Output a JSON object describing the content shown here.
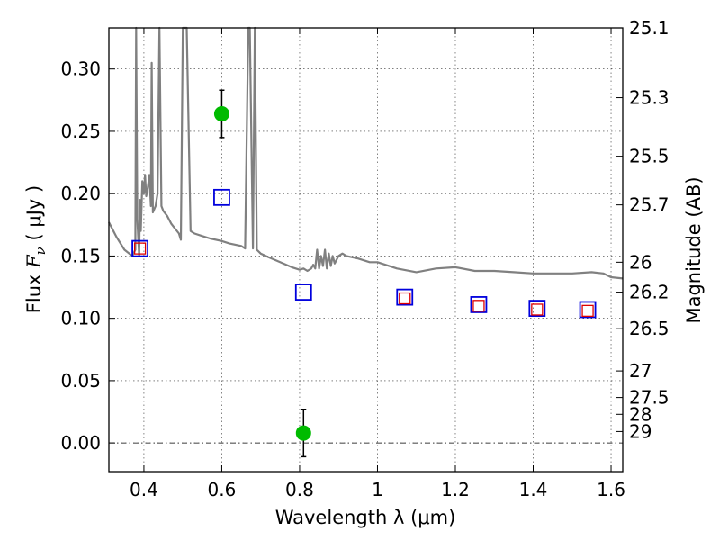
{
  "chart_data": {
    "type": "scatter",
    "title": "",
    "xlabel": "Wavelength  λ (μm)",
    "ylabel": "Flux  F_ν  ( μJy )",
    "ylabel_parts": {
      "prefix": "Flux ",
      "symbol": "F",
      "sub": "ν",
      "unit": " ( μJy )"
    },
    "y2label": "Magnitude (AB)",
    "xlim": [
      0.31,
      1.63
    ],
    "ylim": [
      -0.023,
      0.333
    ],
    "grid": true,
    "x_ticks": [
      0.4,
      0.6,
      0.8,
      1.0,
      1.2,
      1.4,
      1.6
    ],
    "x_tick_labels": [
      "0.4",
      "0.6",
      "0.8",
      "1",
      "1.2",
      "1.4",
      "1.6"
    ],
    "y_ticks": [
      0.0,
      0.05,
      0.1,
      0.15,
      0.2,
      0.25,
      0.3
    ],
    "y_tick_labels": [
      "0.00",
      "0.05",
      "0.10",
      "0.15",
      "0.20",
      "0.25",
      "0.30"
    ],
    "y2_ticks": [
      {
        "label": "25.1",
        "flux": 0.333
      },
      {
        "label": "25.3",
        "flux": 0.277
      },
      {
        "label": "25.5",
        "flux": 0.23
      },
      {
        "label": "25.7",
        "flux": 0.191
      },
      {
        "label": "26",
        "flux": 0.145
      },
      {
        "label": "26.2",
        "flux": 0.121
      },
      {
        "label": "26.5",
        "flux": 0.0917
      },
      {
        "label": "27",
        "flux": 0.0578
      },
      {
        "label": "27.5",
        "flux": 0.0365
      },
      {
        "label": "28",
        "flux": 0.023
      },
      {
        "label": "29",
        "flux": 0.0092
      }
    ],
    "series": [
      {
        "name": "observed photometry",
        "marker": "circle",
        "color": "#00bb00",
        "points": [
          {
            "x": 0.6,
            "y": 0.264,
            "err": 0.019
          },
          {
            "x": 0.81,
            "y": 0.008,
            "err": 0.019
          }
        ]
      },
      {
        "name": "model photometry (blue squares)",
        "marker": "square",
        "color": "#0000dd",
        "points": [
          {
            "x": 0.39,
            "y": 0.156
          },
          {
            "x": 0.6,
            "y": 0.197
          },
          {
            "x": 0.81,
            "y": 0.121
          },
          {
            "x": 1.07,
            "y": 0.117
          },
          {
            "x": 1.26,
            "y": 0.111
          },
          {
            "x": 1.41,
            "y": 0.108
          },
          {
            "x": 1.54,
            "y": 0.107
          }
        ]
      },
      {
        "name": "model photometry (red squares)",
        "marker": "square-small",
        "color": "#dd0000",
        "points": [
          {
            "x": 0.39,
            "y": 0.156
          },
          {
            "x": 1.07,
            "y": 0.116
          },
          {
            "x": 1.26,
            "y": 0.11
          },
          {
            "x": 1.41,
            "y": 0.107
          },
          {
            "x": 1.54,
            "y": 0.106
          }
        ]
      },
      {
        "name": "model SED spectrum",
        "type": "line",
        "color": "#808080",
        "x": [
          0.31,
          0.33,
          0.35,
          0.37,
          0.378,
          0.38,
          0.383,
          0.386,
          0.388,
          0.39,
          0.392,
          0.396,
          0.4,
          0.403,
          0.406,
          0.41,
          0.414,
          0.418,
          0.42,
          0.423,
          0.43,
          0.435,
          0.44,
          0.445,
          0.45,
          0.46,
          0.47,
          0.48,
          0.49,
          0.495,
          0.5,
          0.505,
          0.51,
          0.52,
          0.53,
          0.55,
          0.57,
          0.6,
          0.62,
          0.65,
          0.66,
          0.668,
          0.672,
          0.68,
          0.685,
          0.69,
          0.7,
          0.72,
          0.75,
          0.78,
          0.8,
          0.81,
          0.82,
          0.83,
          0.835,
          0.84,
          0.845,
          0.85,
          0.855,
          0.86,
          0.865,
          0.87,
          0.875,
          0.88,
          0.885,
          0.89,
          0.9,
          0.91,
          0.92,
          0.95,
          0.98,
          1.0,
          1.05,
          1.1,
          1.15,
          1.2,
          1.25,
          1.3,
          1.35,
          1.4,
          1.45,
          1.5,
          1.55,
          1.58,
          1.6,
          1.63
        ],
        "y": [
          0.177,
          0.165,
          0.155,
          0.15,
          0.155,
          0.333,
          0.18,
          0.16,
          0.15,
          0.195,
          0.17,
          0.21,
          0.2,
          0.215,
          0.198,
          0.205,
          0.215,
          0.19,
          0.305,
          0.185,
          0.19,
          0.2,
          0.333,
          0.19,
          0.186,
          0.182,
          0.176,
          0.172,
          0.168,
          0.163,
          0.333,
          0.333,
          0.333,
          0.17,
          0.168,
          0.166,
          0.164,
          0.162,
          0.16,
          0.158,
          0.156,
          0.333,
          0.333,
          0.156,
          0.333,
          0.155,
          0.152,
          0.149,
          0.145,
          0.141,
          0.139,
          0.14,
          0.138,
          0.14,
          0.143,
          0.14,
          0.155,
          0.14,
          0.15,
          0.142,
          0.155,
          0.14,
          0.152,
          0.142,
          0.15,
          0.144,
          0.15,
          0.152,
          0.15,
          0.148,
          0.145,
          0.145,
          0.14,
          0.137,
          0.14,
          0.141,
          0.138,
          0.138,
          0.137,
          0.136,
          0.136,
          0.136,
          0.137,
          0.136,
          0.133,
          0.132
        ]
      }
    ]
  }
}
